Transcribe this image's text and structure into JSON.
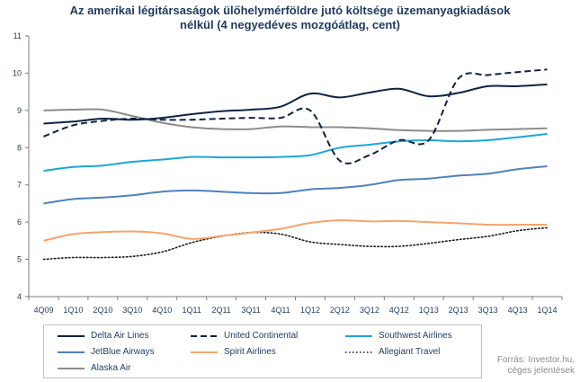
{
  "chart_data": {
    "type": "line",
    "title": "Az amerikai légitársaságok ülőhelymérföldre jutó költsége üzemanyagkiadások nélkül (4 negyedéves mozgóátlag, cent)",
    "title_lines": [
      "Az amerikai légitársaságok ülőhelymérföldre jutó költsége üzemanyagkiadások",
      "nélkül (4 negyedéves mozgóátlag, cent)"
    ],
    "xlabel": "",
    "ylabel": "",
    "ylim": [
      4,
      11
    ],
    "yticks": [
      "4",
      "5",
      "6",
      "7",
      "8",
      "9",
      "10",
      "11"
    ],
    "categories": [
      "4Q09",
      "1Q10",
      "2Q10",
      "3Q10",
      "4Q10",
      "1Q11",
      "2Q11",
      "3Q11",
      "4Q11",
      "1Q12",
      "2Q12",
      "3Q12",
      "4Q12",
      "1Q13",
      "2Q13",
      "3Q13",
      "4Q13",
      "1Q14"
    ],
    "grid": false,
    "legend_position": "bottom",
    "series": [
      {
        "name": "Delta Air Lines",
        "color": "#0f2342",
        "dash": "solid",
        "values": [
          8.65,
          8.7,
          8.78,
          8.75,
          8.8,
          8.9,
          8.98,
          9.02,
          9.1,
          9.45,
          9.35,
          9.48,
          9.58,
          9.38,
          9.47,
          9.65,
          9.65,
          9.7
        ]
      },
      {
        "name": "United Continental",
        "color": "#0f2342",
        "dash": "dashed",
        "values": [
          8.3,
          8.6,
          8.72,
          8.78,
          8.75,
          8.75,
          8.78,
          8.8,
          8.8,
          9.0,
          7.65,
          7.8,
          8.2,
          8.2,
          9.85,
          9.95,
          10.03,
          10.1
        ]
      },
      {
        "name": "Southwest Airlines",
        "color": "#1aa7d8",
        "dash": "solid",
        "values": [
          7.38,
          7.48,
          7.52,
          7.62,
          7.68,
          7.75,
          7.74,
          7.74,
          7.75,
          7.8,
          8.0,
          8.08,
          8.17,
          8.2,
          8.17,
          8.2,
          8.28,
          8.37
        ]
      },
      {
        "name": "JetBlue Airways",
        "color": "#4f81bd",
        "dash": "solid",
        "values": [
          6.5,
          6.62,
          6.66,
          6.72,
          6.82,
          6.85,
          6.82,
          6.78,
          6.78,
          6.88,
          6.92,
          7.0,
          7.13,
          7.17,
          7.25,
          7.3,
          7.42,
          7.5
        ]
      },
      {
        "name": "Spirit Airlines",
        "color": "#f4a56a",
        "dash": "solid",
        "values": [
          5.5,
          5.68,
          5.73,
          5.75,
          5.7,
          5.55,
          5.63,
          5.72,
          5.82,
          5.98,
          6.05,
          6.02,
          6.03,
          6.0,
          5.97,
          5.93,
          5.93,
          5.93
        ]
      },
      {
        "name": "Allegiant Travel",
        "color": "#1a1a1a",
        "dash": "dotted",
        "values": [
          5.0,
          5.05,
          5.05,
          5.08,
          5.2,
          5.45,
          5.62,
          5.72,
          5.68,
          5.47,
          5.4,
          5.35,
          5.35,
          5.43,
          5.53,
          5.62,
          5.77,
          5.85
        ]
      },
      {
        "name": "Alaska Air",
        "color": "#8c8c8c",
        "dash": "solid",
        "values": [
          9.0,
          9.02,
          9.02,
          8.85,
          8.67,
          8.55,
          8.5,
          8.5,
          8.57,
          8.55,
          8.55,
          8.52,
          8.47,
          8.45,
          8.45,
          8.48,
          8.5,
          8.52
        ]
      }
    ],
    "source_lines": [
      "Forrás: Investor.hu,",
      "céges jelentések"
    ]
  }
}
